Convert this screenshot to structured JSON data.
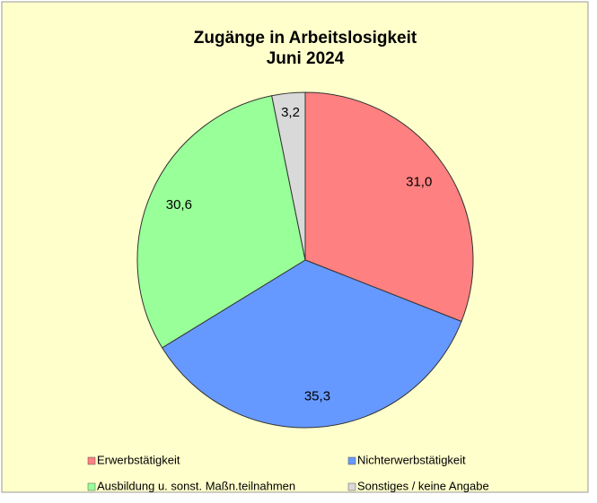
{
  "chart_data": {
    "type": "pie",
    "title": "Zugänge in Arbeitslosigkeit",
    "subtitle": "Juni 2024",
    "categories": [
      "Erwerbstätigkeit",
      "Nichterwerbstätigkeit",
      "Ausbildung u. sonst. Maßn.teilnahmen",
      "Sonstiges / keine Angabe"
    ],
    "values": [
      31.0,
      35.3,
      30.6,
      3.2
    ],
    "value_labels": [
      "31,0",
      "35,3",
      "30,6",
      "3,2"
    ],
    "colors": [
      "#ff8080",
      "#6699ff",
      "#99ff99",
      "#d9d9d9"
    ]
  }
}
